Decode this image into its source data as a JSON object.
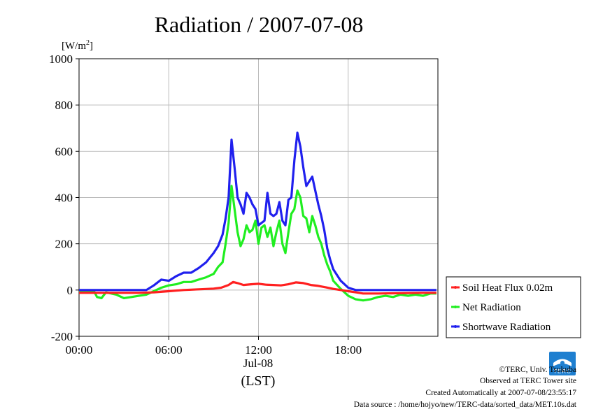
{
  "chart_data": {
    "type": "line",
    "title": "Radiation / 2007-07-08",
    "ylabel": "[W/m",
    "ylabel_sup": "2",
    "ylabel_end": "]",
    "ylim": [
      -200,
      1000
    ],
    "yticks": [
      -200,
      0,
      200,
      400,
      600,
      800,
      1000
    ],
    "xlim_hours": [
      0,
      24
    ],
    "xticks": [
      {
        "h": 0,
        "label": "00:00"
      },
      {
        "h": 6,
        "label": "06:00"
      },
      {
        "h": 12,
        "label": "12:00"
      },
      {
        "h": 18,
        "label": "18:00"
      }
    ],
    "xdate_label": "Jul-08",
    "xaxis_note": "(LST)",
    "grid": true,
    "legend_position": "right-bottom",
    "series": [
      {
        "name": "Soil Heat Flux 0.02m",
        "color": "#ff2020",
        "points": [
          [
            0,
            -12
          ],
          [
            1,
            -12
          ],
          [
            2,
            -12
          ],
          [
            3,
            -12
          ],
          [
            4,
            -12
          ],
          [
            5,
            -10
          ],
          [
            6,
            -5
          ],
          [
            7,
            0
          ],
          [
            8,
            3
          ],
          [
            9,
            6
          ],
          [
            9.5,
            10
          ],
          [
            10,
            22
          ],
          [
            10.3,
            35
          ],
          [
            10.6,
            30
          ],
          [
            11,
            22
          ],
          [
            11.5,
            25
          ],
          [
            12,
            27
          ],
          [
            12.5,
            23
          ],
          [
            13,
            22
          ],
          [
            13.5,
            20
          ],
          [
            14,
            25
          ],
          [
            14.5,
            33
          ],
          [
            15,
            30
          ],
          [
            15.5,
            22
          ],
          [
            16,
            18
          ],
          [
            16.5,
            12
          ],
          [
            17,
            5
          ],
          [
            17.5,
            0
          ],
          [
            18,
            -5
          ],
          [
            18.5,
            -10
          ],
          [
            19,
            -15
          ],
          [
            20,
            -15
          ],
          [
            21,
            -14
          ],
          [
            22,
            -13
          ],
          [
            23,
            -12
          ],
          [
            23.9,
            -12
          ]
        ]
      },
      {
        "name": "Net Radiation",
        "color": "#20ee20",
        "points": [
          [
            0,
            -5
          ],
          [
            1,
            -5
          ],
          [
            1.2,
            -30
          ],
          [
            1.5,
            -35
          ],
          [
            1.8,
            -10
          ],
          [
            2.5,
            -20
          ],
          [
            3,
            -35
          ],
          [
            3.5,
            -30
          ],
          [
            4,
            -25
          ],
          [
            4.5,
            -20
          ],
          [
            5,
            -5
          ],
          [
            5.5,
            10
          ],
          [
            6,
            20
          ],
          [
            6.5,
            25
          ],
          [
            7,
            35
          ],
          [
            7.5,
            35
          ],
          [
            8,
            45
          ],
          [
            8.5,
            55
          ],
          [
            9,
            70
          ],
          [
            9.3,
            100
          ],
          [
            9.6,
            120
          ],
          [
            9.8,
            200
          ],
          [
            10,
            290
          ],
          [
            10.2,
            450
          ],
          [
            10.4,
            350
          ],
          [
            10.6,
            250
          ],
          [
            10.8,
            190
          ],
          [
            11,
            220
          ],
          [
            11.2,
            280
          ],
          [
            11.4,
            250
          ],
          [
            11.6,
            260
          ],
          [
            11.8,
            300
          ],
          [
            12,
            200
          ],
          [
            12.2,
            270
          ],
          [
            12.4,
            280
          ],
          [
            12.6,
            230
          ],
          [
            12.8,
            270
          ],
          [
            13,
            190
          ],
          [
            13.2,
            250
          ],
          [
            13.4,
            300
          ],
          [
            13.6,
            200
          ],
          [
            13.8,
            160
          ],
          [
            14,
            250
          ],
          [
            14.2,
            330
          ],
          [
            14.4,
            350
          ],
          [
            14.6,
            430
          ],
          [
            14.8,
            400
          ],
          [
            15,
            320
          ],
          [
            15.2,
            310
          ],
          [
            15.4,
            250
          ],
          [
            15.6,
            320
          ],
          [
            15.8,
            280
          ],
          [
            16,
            230
          ],
          [
            16.2,
            200
          ],
          [
            16.4,
            150
          ],
          [
            16.6,
            110
          ],
          [
            16.8,
            80
          ],
          [
            17,
            40
          ],
          [
            17.5,
            5
          ],
          [
            18,
            -25
          ],
          [
            18.5,
            -40
          ],
          [
            19,
            -45
          ],
          [
            19.5,
            -40
          ],
          [
            20,
            -30
          ],
          [
            20.5,
            -25
          ],
          [
            21,
            -30
          ],
          [
            21.5,
            -20
          ],
          [
            22,
            -25
          ],
          [
            22.5,
            -20
          ],
          [
            23,
            -25
          ],
          [
            23.5,
            -15
          ],
          [
            23.9,
            -15
          ]
        ]
      },
      {
        "name": "Shortwave Radiation",
        "color": "#2020ee",
        "points": [
          [
            0,
            0
          ],
          [
            1,
            0
          ],
          [
            2,
            0
          ],
          [
            3,
            0
          ],
          [
            4,
            0
          ],
          [
            4.5,
            0
          ],
          [
            5,
            20
          ],
          [
            5.5,
            45
          ],
          [
            6,
            40
          ],
          [
            6.5,
            60
          ],
          [
            7,
            75
          ],
          [
            7.5,
            75
          ],
          [
            8,
            95
          ],
          [
            8.5,
            120
          ],
          [
            9,
            160
          ],
          [
            9.3,
            190
          ],
          [
            9.6,
            240
          ],
          [
            9.8,
            310
          ],
          [
            10,
            400
          ],
          [
            10.2,
            650
          ],
          [
            10.4,
            530
          ],
          [
            10.6,
            400
          ],
          [
            10.8,
            370
          ],
          [
            11,
            330
          ],
          [
            11.2,
            420
          ],
          [
            11.4,
            400
          ],
          [
            11.6,
            370
          ],
          [
            11.8,
            350
          ],
          [
            12,
            280
          ],
          [
            12.2,
            290
          ],
          [
            12.4,
            300
          ],
          [
            12.6,
            420
          ],
          [
            12.8,
            330
          ],
          [
            13,
            320
          ],
          [
            13.2,
            330
          ],
          [
            13.4,
            380
          ],
          [
            13.6,
            300
          ],
          [
            13.8,
            280
          ],
          [
            14,
            390
          ],
          [
            14.2,
            400
          ],
          [
            14.4,
            560
          ],
          [
            14.6,
            680
          ],
          [
            14.8,
            620
          ],
          [
            15,
            530
          ],
          [
            15.2,
            450
          ],
          [
            15.4,
            470
          ],
          [
            15.6,
            490
          ],
          [
            15.8,
            430
          ],
          [
            16,
            370
          ],
          [
            16.2,
            320
          ],
          [
            16.4,
            260
          ],
          [
            16.6,
            180
          ],
          [
            16.8,
            130
          ],
          [
            17,
            90
          ],
          [
            17.5,
            40
          ],
          [
            18,
            10
          ],
          [
            18.5,
            0
          ],
          [
            19,
            0
          ],
          [
            20,
            0
          ],
          [
            21,
            0
          ],
          [
            22,
            0
          ],
          [
            23,
            0
          ],
          [
            23.9,
            0
          ]
        ]
      }
    ]
  },
  "footer": {
    "logo_text": "TERC",
    "copyright": "©TERC, Univ. Tsukuba",
    "observed": "Observed at TERC Tower site",
    "created": "Created Automatically at 2007-07-08/23:55:17",
    "source": "Data source : /home/hojyo/new/TERC-data/sorted_data/MET.10s.dat"
  }
}
